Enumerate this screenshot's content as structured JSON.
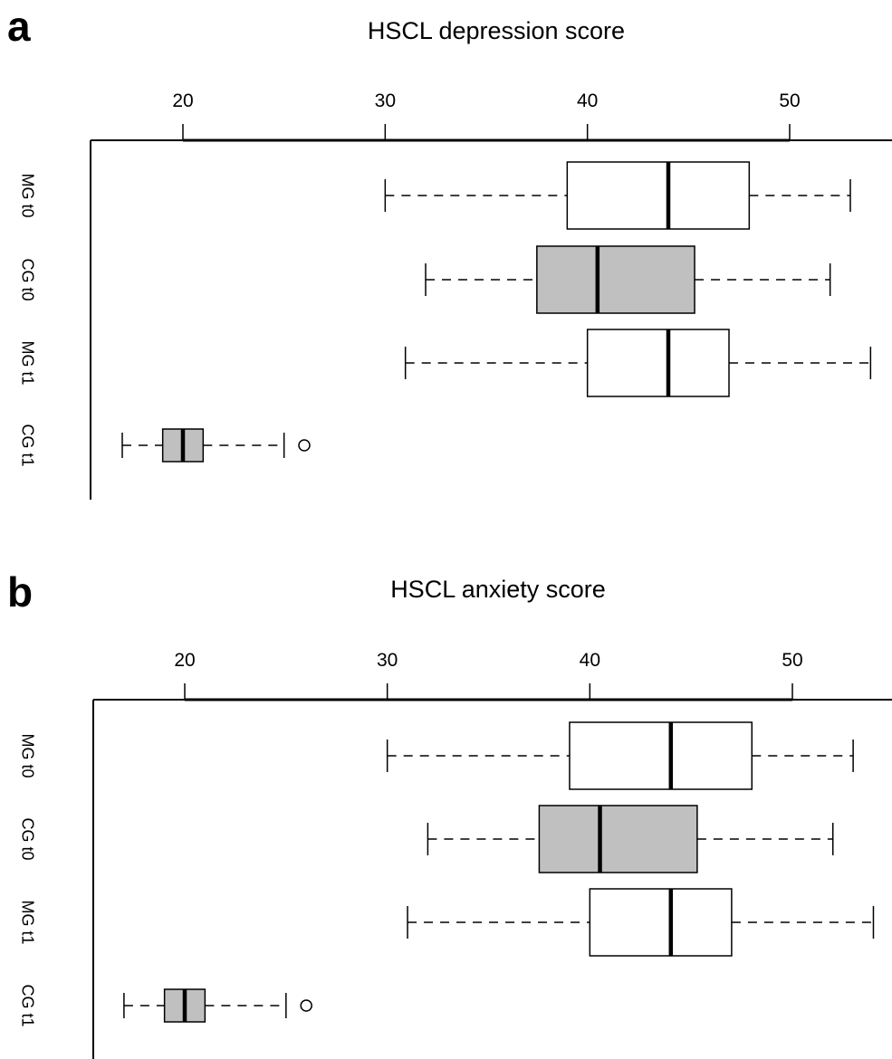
{
  "chart_data": [
    {
      "type": "boxplot",
      "panel_letter": "a",
      "title": "HSCL depression score",
      "orientation": "horizontal",
      "xlim": [
        15,
        55
      ],
      "ticks": [
        20,
        30,
        40,
        50
      ],
      "axis_position": "top",
      "grid": false,
      "colors": {
        "MG": "#ffffff",
        "CG": "#c0c0c0"
      },
      "groups": [
        {
          "label": "MG t0",
          "min": 30,
          "q1": 39,
          "median": 44,
          "q3": 48,
          "max": 53,
          "outliers": []
        },
        {
          "label": "CG t0",
          "min": 32,
          "q1": 37.5,
          "median": 40.5,
          "q3": 45.3,
          "max": 52,
          "outliers": []
        },
        {
          "label": "MG t1",
          "min": 31,
          "q1": 40,
          "median": 44,
          "q3": 47,
          "max": 54,
          "outliers": []
        },
        {
          "label": "CG t1",
          "min": 17,
          "q1": 19,
          "median": 20,
          "q3": 21,
          "max": 25,
          "outliers": [
            26
          ]
        }
      ]
    },
    {
      "type": "boxplot",
      "panel_letter": "b",
      "title": "HSCL anxiety score",
      "orientation": "horizontal",
      "xlim": [
        15,
        55
      ],
      "ticks": [
        20,
        30,
        40,
        50
      ],
      "axis_position": "top",
      "grid": false,
      "colors": {
        "MG": "#ffffff",
        "CG": "#c0c0c0"
      },
      "groups": [
        {
          "label": "MG t0",
          "min": 30,
          "q1": 39,
          "median": 44,
          "q3": 48,
          "max": 53,
          "outliers": []
        },
        {
          "label": "CG t0",
          "min": 32,
          "q1": 37.5,
          "median": 40.5,
          "q3": 45.3,
          "max": 52,
          "outliers": []
        },
        {
          "label": "MG t1",
          "min": 31,
          "q1": 40,
          "median": 44,
          "q3": 47,
          "max": 54,
          "outliers": []
        },
        {
          "label": "CG t1",
          "min": 17,
          "q1": 19,
          "median": 20,
          "q3": 21,
          "max": 25,
          "outliers": [
            26
          ]
        }
      ]
    }
  ]
}
